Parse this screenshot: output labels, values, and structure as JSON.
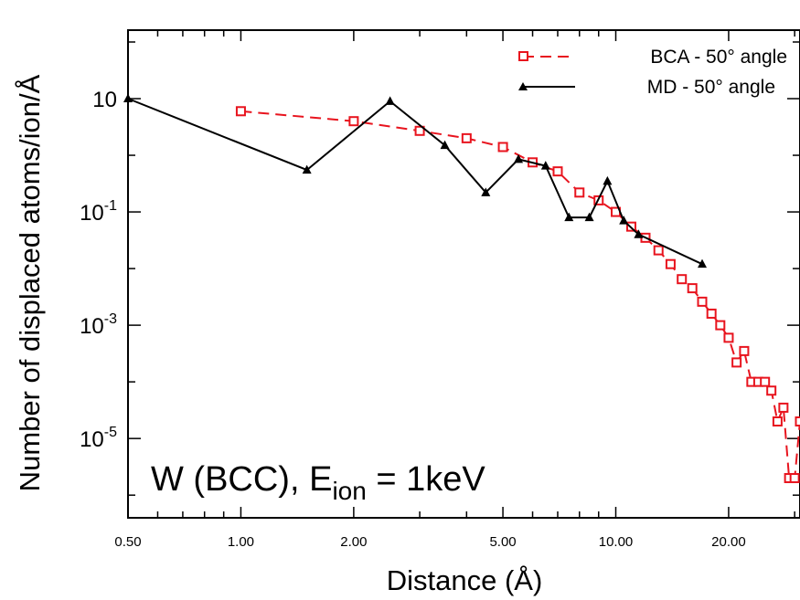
{
  "chart_data": {
    "type": "line",
    "title": "",
    "xlabel": "Distance (Å)",
    "ylabel": "Number of displaced atoms/ion/Å",
    "x_scale": "log",
    "y_scale": "log",
    "xlim": [
      0.5,
      31
    ],
    "ylim": [
      3.98e-07,
      162
    ],
    "x_ticks": [
      {
        "value": 0.5,
        "label": "0.50"
      },
      {
        "value": 1,
        "label": "1.00"
      },
      {
        "value": 2,
        "label": "2.00"
      },
      {
        "value": 5,
        "label": "5.00"
      },
      {
        "value": 10,
        "label": "10.00"
      },
      {
        "value": 20,
        "label": "20.00"
      }
    ],
    "y_ticks": [
      {
        "value": 10,
        "label": "10"
      },
      {
        "value": 0.1,
        "base": "10",
        "exp": "-1"
      },
      {
        "value": 0.001,
        "base": "10",
        "exp": "-3"
      },
      {
        "value": 1e-05,
        "base": "10",
        "exp": "-5"
      }
    ],
    "legend_position": "top-right",
    "annotation": {
      "main": "W (BCC), E",
      "sub": "ion",
      "tail": " = 1keV"
    },
    "series": [
      {
        "name": "BCA - 50° angle",
        "color": "#e8141e",
        "line": "dashed",
        "marker": "open-square",
        "x": [
          1.0,
          2.0,
          3.0,
          4.0,
          5.0,
          6.0,
          7.0,
          8.0,
          9.0,
          10.0,
          11.0,
          12.0,
          13.0,
          14.0,
          15.0,
          16.0,
          17.0,
          18.0,
          19.0,
          20.0,
          21.0,
          22.0,
          23.0,
          24.0,
          25.0,
          26.0,
          27.0,
          28.0,
          29.0,
          30.0,
          31.0
        ],
        "y": [
          6.0,
          4.0,
          2.7,
          2.0,
          1.4,
          0.75,
          0.52,
          0.22,
          0.16,
          0.1,
          0.055,
          0.035,
          0.021,
          0.012,
          0.0065,
          0.0045,
          0.0026,
          0.0016,
          0.001,
          0.0006,
          0.00022,
          0.00035,
          0.0001,
          0.0001,
          0.0001,
          7e-05,
          2e-05,
          3.5e-05,
          2e-06,
          2e-06,
          2e-05
        ]
      },
      {
        "name": "MD - 50° angle",
        "color": "#000000",
        "line": "solid",
        "marker": "filled-triangle",
        "x": [
          0.5,
          1.5,
          2.5,
          3.5,
          4.5,
          5.5,
          6.5,
          7.5,
          8.5,
          9.5,
          10.5,
          11.5,
          17.0
        ],
        "y": [
          10.0,
          0.55,
          9.0,
          1.5,
          0.22,
          0.85,
          0.65,
          0.08,
          0.08,
          0.35,
          0.07,
          0.04,
          0.012
        ]
      }
    ]
  }
}
